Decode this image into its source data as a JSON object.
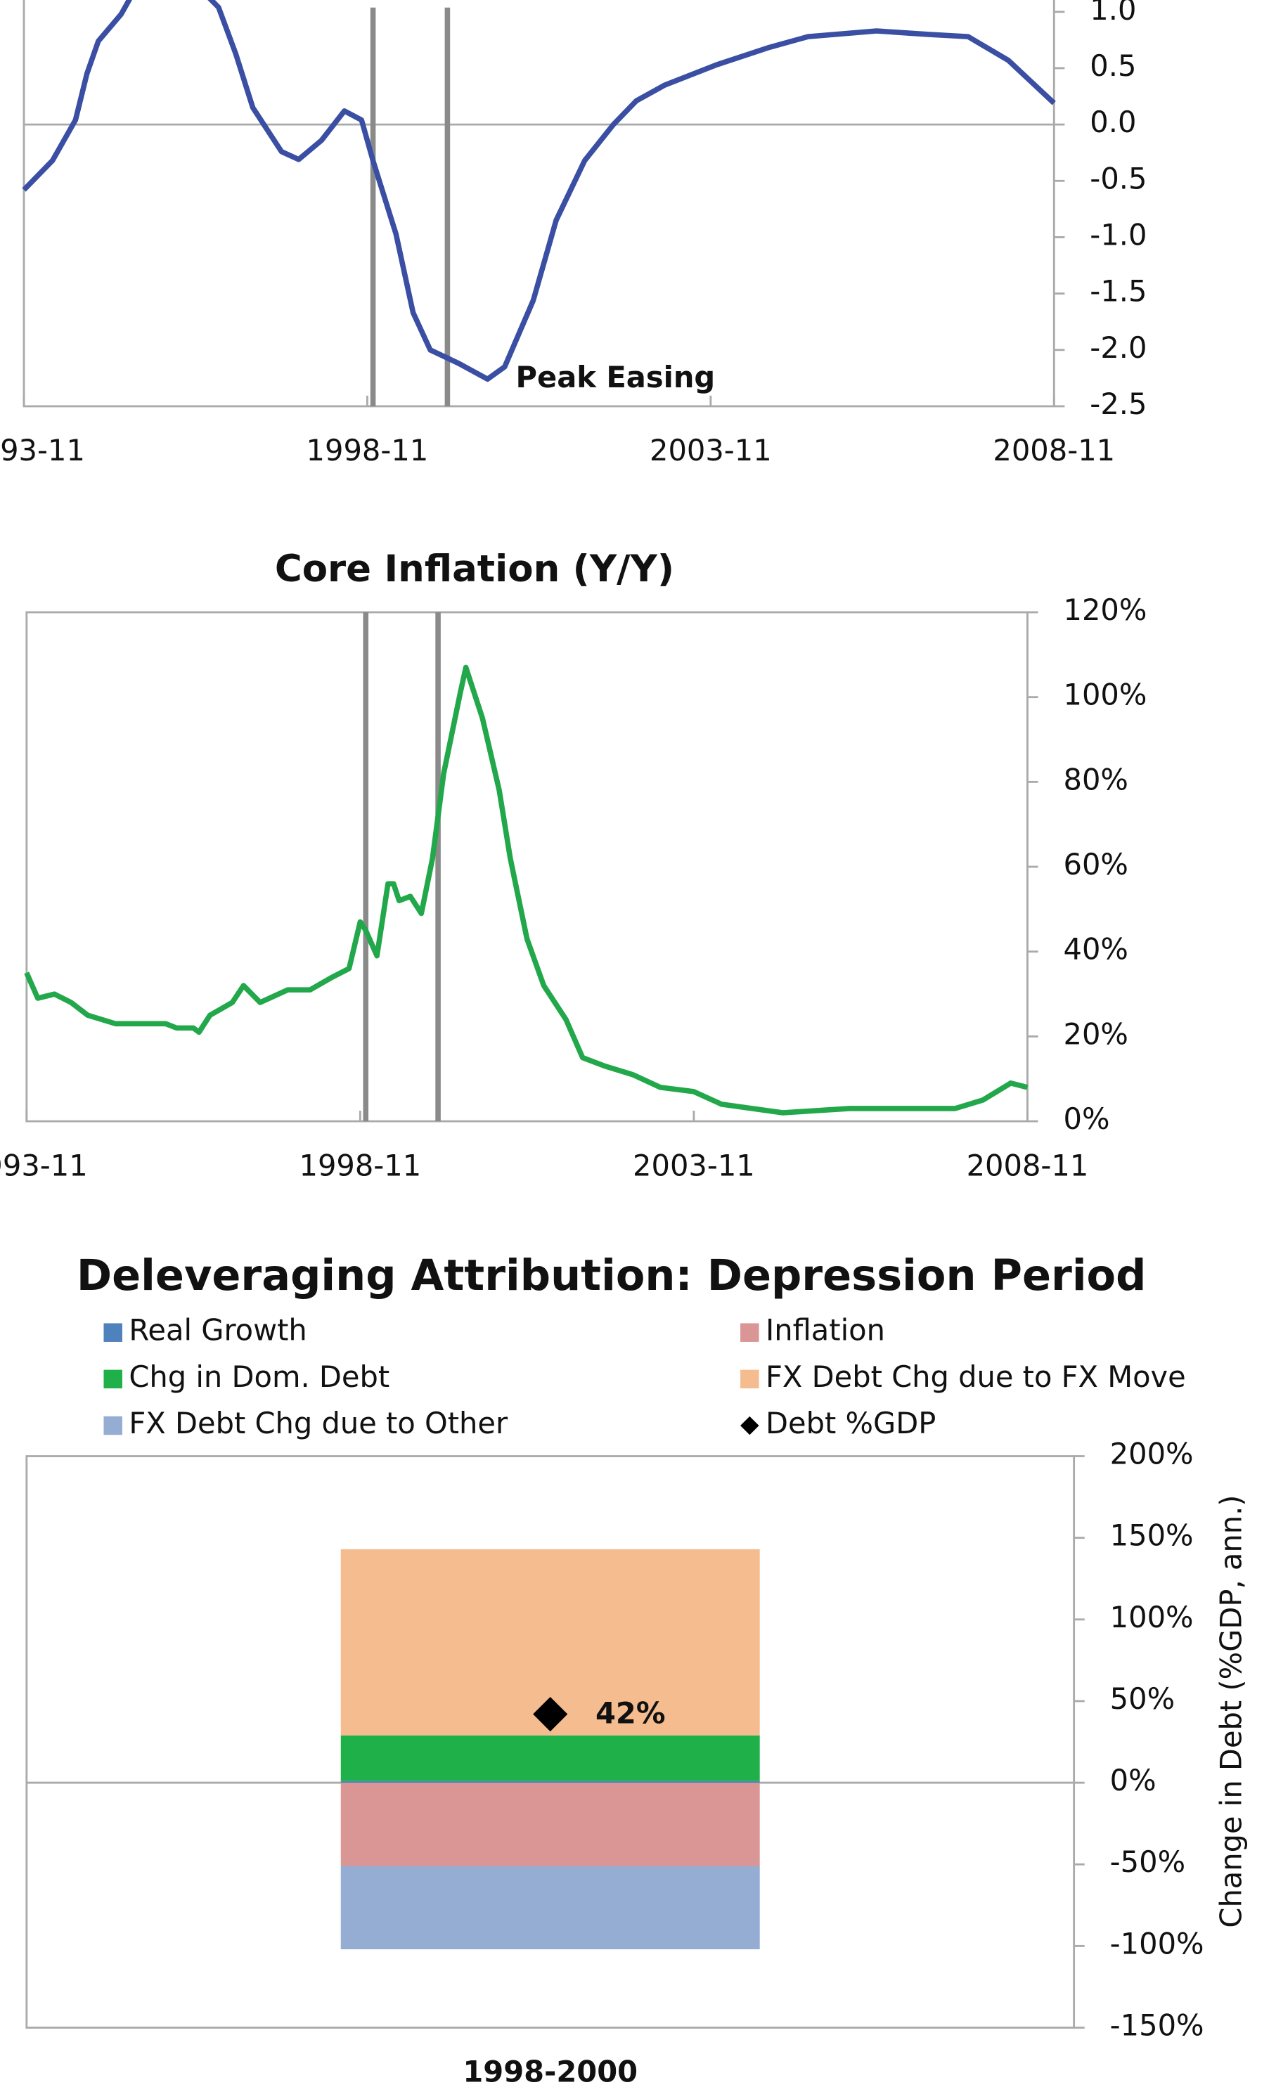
{
  "chart_data": [
    {
      "type": "line",
      "x": [
        "1993-11",
        "1994-04",
        "1994-08",
        "1994-10",
        "1994-12",
        "1995-04",
        "1995-06",
        "1996-01",
        "1996-09",
        "1996-12",
        "1997-03",
        "1997-08",
        "1997-11",
        "1998-03",
        "1998-07",
        "1998-10",
        "1998-12",
        "1999-04",
        "1999-07",
        "1999-10",
        "2000-03",
        "2000-08",
        "2000-11",
        "2001-04",
        "2001-08",
        "2002-01",
        "2002-06",
        "2002-10",
        "2003-03",
        "2003-12",
        "2004-09",
        "2005-04",
        "2006-04",
        "2007-01",
        "2007-08",
        "2008-03",
        "2008-11"
      ],
      "series": [
        {
          "color": "#3a4fa3",
          "values": [
            -0.58,
            -0.32,
            0.04,
            0.45,
            0.74,
            0.98,
            1.16,
            1.45,
            1.04,
            0.63,
            0.15,
            -0.24,
            -0.31,
            -0.14,
            0.12,
            0.04,
            -0.32,
            -0.97,
            -1.67,
            -2.0,
            -2.12,
            -2.26,
            -2.15,
            -1.56,
            -0.85,
            -0.32,
            0,
            0.21,
            0.35,
            0.53,
            0.68,
            0.78,
            0.83,
            0.8,
            0.78,
            0.57,
            0.19
          ]
        }
      ],
      "xlim": [
        "1993-11",
        "2008-11"
      ],
      "xticks": [
        "1993-11",
        "1998-11",
        "2003-11",
        "2008-11"
      ],
      "ylim": [
        -2.5,
        1.5
      ],
      "yticks": [
        {
          "value": 1,
          "label": "1.0"
        },
        0.5,
        {
          "value": 0,
          "label": "0.0"
        },
        -0.5,
        {
          "value": -1,
          "label": "-1.0"
        },
        -1.5,
        {
          "value": -2,
          "label": "-2.0"
        },
        -2.5
      ],
      "events": [
        "1998-12",
        "2000-01"
      ],
      "annotation": "Peak Easing"
    },
    {
      "type": "line",
      "title": "Core Inflation (Y/Y)",
      "x": [
        "1993-11",
        "1994-01",
        "1994-04",
        "1994-07",
        "1994-10",
        "1995-03",
        "1995-07",
        "1995-12",
        "1996-02",
        "1996-05",
        "1996-06",
        "1996-08",
        "1996-12",
        "1997-02",
        "1997-05",
        "1997-10",
        "1998-02",
        "1998-06",
        "1998-09",
        "1998-11",
        "1998-12",
        "1999-02",
        "1999-04",
        "1999-05",
        "1999-06",
        "1999-08",
        "1999-10",
        "1999-12",
        "2000-02",
        "2000-05",
        "2000-06",
        "2000-09",
        "2000-12",
        "2001-02",
        "2001-05",
        "2001-08",
        "2001-12",
        "2002-03",
        "2002-07",
        "2002-12",
        "2003-05",
        "2003-11",
        "2004-04",
        "2005-03",
        "2006-03",
        "2007-03",
        "2007-10",
        "2008-03",
        "2008-08",
        "2008-11"
      ],
      "series": [
        {
          "color": "#22a84a",
          "values": [
            35,
            29,
            30,
            28,
            25,
            23,
            23,
            23,
            22,
            22,
            21,
            25,
            28,
            32,
            28,
            31,
            31,
            34,
            36,
            47,
            45,
            39,
            56,
            56,
            52,
            53,
            49,
            62,
            82,
            101,
            107,
            95,
            78,
            62,
            43,
            32,
            24,
            15,
            13,
            11,
            8,
            7,
            4,
            2,
            3,
            3,
            3,
            5,
            9,
            8
          ]
        }
      ],
      "xlim": [
        "1993-11",
        "2008-11"
      ],
      "xticks": [
        "1993-11",
        "1998-11",
        "2003-11",
        "2008-11"
      ],
      "ylim": [
        0,
        120
      ],
      "yticks": [
        {
          "value": 0,
          "label": "0%"
        },
        {
          "value": 20,
          "label": "20%"
        },
        {
          "value": 40,
          "label": "40%"
        },
        {
          "value": 60,
          "label": "60%"
        },
        {
          "value": 80,
          "label": "80%"
        },
        {
          "value": 100,
          "label": "100%"
        },
        {
          "value": 120,
          "label": "120%"
        }
      ],
      "events": [
        "1998-12",
        "2000-01"
      ]
    },
    {
      "type": "bar",
      "stacked": true,
      "title": "Deleveraging Attribution: Depression Period",
      "categories": [
        "1998-2000"
      ],
      "series": [
        {
          "name": "Real Growth",
          "color": "#4f81bd",
          "values": [
            1
          ]
        },
        {
          "name": "Inflation",
          "color": "#d99694",
          "values": [
            -51
          ]
        },
        {
          "name": "Chg in Dom. Debt",
          "color": "#1fb04a",
          "values": [
            28
          ]
        },
        {
          "name": "FX Debt Chg due to FX Move",
          "color": "#f5bd8f",
          "values": [
            114
          ]
        },
        {
          "name": "FX Debt Chg due to Other",
          "color": "#95acd3",
          "values": [
            -51
          ]
        },
        {
          "name": "Debt %GDP",
          "type": "scatter",
          "marker": "diamond",
          "color": "#000000",
          "values": [
            42
          ],
          "value_labels": [
            "42%"
          ]
        }
      ],
      "ylim": [
        -150,
        200
      ],
      "yticks": [
        {
          "value": -150,
          "label": "-150%"
        },
        {
          "value": -100,
          "label": "-100%"
        },
        {
          "value": -50,
          "label": "-50%"
        },
        {
          "value": 0,
          "label": "0%"
        },
        {
          "value": 50,
          "label": "50%"
        },
        {
          "value": 100,
          "label": "100%"
        },
        {
          "value": 150,
          "label": "150%"
        },
        {
          "value": 200,
          "label": "200%"
        }
      ],
      "ylabel": "Change in Debt (%GDP, ann.)"
    }
  ]
}
